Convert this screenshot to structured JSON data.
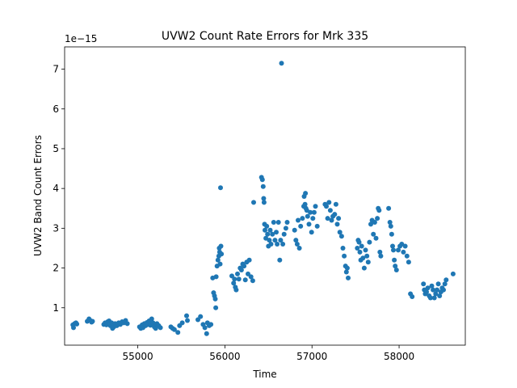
{
  "chart_data": {
    "type": "scatter",
    "title": "UVW2 Count Rate Errors for Mrk 335",
    "xlabel": "Time",
    "ylabel": "UVW2 Band Count Errors",
    "offset_text": "1e−15",
    "xlim": [
      54160,
      58760
    ],
    "ylim": [
      0.06,
      7.56
    ],
    "xticks": [
      55000,
      56000,
      57000,
      58000
    ],
    "xtick_labels": [
      "55000",
      "56000",
      "57000",
      "58000"
    ],
    "yticks": [
      1,
      2,
      3,
      4,
      5,
      6,
      7
    ],
    "ytick_labels": [
      "1",
      "2",
      "3",
      "4",
      "5",
      "6",
      "7"
    ],
    "grid": false,
    "marker_color": "#1f77b4",
    "series": [
      {
        "points": [
          [
            54255,
            0.57
          ],
          [
            54262,
            0.5
          ],
          [
            54275,
            0.6
          ],
          [
            54290,
            0.62
          ],
          [
            54300,
            0.59
          ],
          [
            54420,
            0.66
          ],
          [
            54440,
            0.72
          ],
          [
            54455,
            0.68
          ],
          [
            54470,
            0.64
          ],
          [
            54480,
            0.66
          ],
          [
            54610,
            0.58
          ],
          [
            54625,
            0.62
          ],
          [
            54640,
            0.57
          ],
          [
            54655,
            0.65
          ],
          [
            54670,
            0.67
          ],
          [
            54685,
            0.55
          ],
          [
            54700,
            0.62
          ],
          [
            54710,
            0.48
          ],
          [
            54725,
            0.52
          ],
          [
            54740,
            0.6
          ],
          [
            54760,
            0.55
          ],
          [
            54780,
            0.62
          ],
          [
            54800,
            0.58
          ],
          [
            54820,
            0.65
          ],
          [
            54840,
            0.62
          ],
          [
            54860,
            0.68
          ],
          [
            54880,
            0.6
          ],
          [
            55020,
            0.52
          ],
          [
            55035,
            0.48
          ],
          [
            55050,
            0.57
          ],
          [
            55060,
            0.5
          ],
          [
            55075,
            0.6
          ],
          [
            55090,
            0.55
          ],
          [
            55105,
            0.63
          ],
          [
            55115,
            0.58
          ],
          [
            55130,
            0.67
          ],
          [
            55145,
            0.56
          ],
          [
            55160,
            0.72
          ],
          [
            55175,
            0.62
          ],
          [
            55190,
            0.52
          ],
          [
            55205,
            0.48
          ],
          [
            55220,
            0.6
          ],
          [
            55240,
            0.55
          ],
          [
            55260,
            0.5
          ],
          [
            55380,
            0.52
          ],
          [
            55400,
            0.48
          ],
          [
            55420,
            0.45
          ],
          [
            55460,
            0.38
          ],
          [
            55480,
            0.55
          ],
          [
            55510,
            0.62
          ],
          [
            55560,
            0.8
          ],
          [
            55570,
            0.68
          ],
          [
            55690,
            0.7
          ],
          [
            55720,
            0.78
          ],
          [
            55750,
            0.58
          ],
          [
            55770,
            0.5
          ],
          [
            55790,
            0.35
          ],
          [
            55800,
            0.62
          ],
          [
            55820,
            0.55
          ],
          [
            55840,
            0.58
          ],
          [
            55860,
            1.75
          ],
          [
            55870,
            1.38
          ],
          [
            55880,
            1.3
          ],
          [
            55890,
            1.22
          ],
          [
            55895,
            1.0
          ],
          [
            55900,
            1.78
          ],
          [
            55910,
            2.05
          ],
          [
            55920,
            2.2
          ],
          [
            55930,
            2.3
          ],
          [
            55935,
            2.5
          ],
          [
            55940,
            2.4
          ],
          [
            55945,
            2.1
          ],
          [
            55950,
            4.02
          ],
          [
            55955,
            2.55
          ],
          [
            55960,
            2.35
          ],
          [
            56080,
            1.8
          ],
          [
            56100,
            1.62
          ],
          [
            56110,
            1.72
          ],
          [
            56120,
            1.52
          ],
          [
            56130,
            1.45
          ],
          [
            56145,
            1.85
          ],
          [
            56160,
            1.72
          ],
          [
            56175,
            2.0
          ],
          [
            56190,
            1.95
          ],
          [
            56205,
            2.1
          ],
          [
            56220,
            2.05
          ],
          [
            56235,
            1.7
          ],
          [
            56250,
            2.15
          ],
          [
            56265,
            1.85
          ],
          [
            56280,
            2.2
          ],
          [
            56300,
            1.78
          ],
          [
            56320,
            1.68
          ],
          [
            56330,
            3.65
          ],
          [
            56420,
            4.28
          ],
          [
            56430,
            4.22
          ],
          [
            56440,
            4.05
          ],
          [
            56445,
            3.75
          ],
          [
            56450,
            3.65
          ],
          [
            56455,
            3.1
          ],
          [
            56460,
            2.95
          ],
          [
            56470,
            2.75
          ],
          [
            56480,
            3.05
          ],
          [
            56490,
            2.85
          ],
          [
            56500,
            2.55
          ],
          [
            56510,
            2.7
          ],
          [
            56520,
            2.95
          ],
          [
            56530,
            2.6
          ],
          [
            56545,
            2.85
          ],
          [
            56560,
            3.15
          ],
          [
            56575,
            2.7
          ],
          [
            56590,
            2.9
          ],
          [
            56600,
            2.6
          ],
          [
            56615,
            3.15
          ],
          [
            56630,
            2.2
          ],
          [
            56640,
            2.7
          ],
          [
            56650,
            7.15
          ],
          [
            56665,
            2.6
          ],
          [
            56680,
            2.85
          ],
          [
            56700,
            3.0
          ],
          [
            56715,
            3.15
          ],
          [
            56800,
            2.95
          ],
          [
            56815,
            2.7
          ],
          [
            56830,
            2.6
          ],
          [
            56840,
            3.2
          ],
          [
            56855,
            2.5
          ],
          [
            56870,
            3.05
          ],
          [
            56890,
            3.25
          ],
          [
            56905,
            3.55
          ],
          [
            56910,
            3.8
          ],
          [
            56920,
            3.6
          ],
          [
            56925,
            3.88
          ],
          [
            56930,
            3.5
          ],
          [
            56940,
            3.45
          ],
          [
            56950,
            3.3
          ],
          [
            56965,
            3.1
          ],
          [
            56980,
            3.4
          ],
          [
            56995,
            2.9
          ],
          [
            57010,
            3.25
          ],
          [
            57025,
            3.4
          ],
          [
            57040,
            3.55
          ],
          [
            57060,
            3.05
          ],
          [
            57150,
            3.6
          ],
          [
            57165,
            3.55
          ],
          [
            57180,
            3.25
          ],
          [
            57195,
            3.65
          ],
          [
            57210,
            3.45
          ],
          [
            57225,
            3.2
          ],
          [
            57240,
            3.3
          ],
          [
            57260,
            3.35
          ],
          [
            57275,
            3.6
          ],
          [
            57290,
            3.1
          ],
          [
            57305,
            3.25
          ],
          [
            57320,
            2.9
          ],
          [
            57340,
            2.8
          ],
          [
            57355,
            2.5
          ],
          [
            57370,
            2.3
          ],
          [
            57385,
            2.05
          ],
          [
            57395,
            1.9
          ],
          [
            57405,
            2.0
          ],
          [
            57415,
            1.75
          ],
          [
            57520,
            2.5
          ],
          [
            57530,
            2.7
          ],
          [
            57540,
            2.65
          ],
          [
            57550,
            2.4
          ],
          [
            57560,
            2.2
          ],
          [
            57570,
            2.55
          ],
          [
            57585,
            2.25
          ],
          [
            57600,
            2.0
          ],
          [
            57615,
            2.45
          ],
          [
            57630,
            2.3
          ],
          [
            57645,
            2.15
          ],
          [
            57660,
            2.65
          ],
          [
            57675,
            3.1
          ],
          [
            57690,
            3.2
          ],
          [
            57705,
            2.85
          ],
          [
            57720,
            3.15
          ],
          [
            57735,
            2.75
          ],
          [
            57750,
            3.25
          ],
          [
            57760,
            3.5
          ],
          [
            57770,
            3.45
          ],
          [
            57780,
            2.4
          ],
          [
            57790,
            2.3
          ],
          [
            57880,
            3.5
          ],
          [
            57895,
            3.15
          ],
          [
            57905,
            3.05
          ],
          [
            57915,
            2.85
          ],
          [
            57925,
            2.55
          ],
          [
            57935,
            2.45
          ],
          [
            57945,
            2.2
          ],
          [
            57955,
            2.05
          ],
          [
            57970,
            1.95
          ],
          [
            57990,
            2.45
          ],
          [
            58010,
            2.55
          ],
          [
            58030,
            2.6
          ],
          [
            58050,
            2.4
          ],
          [
            58070,
            2.55
          ],
          [
            58090,
            2.3
          ],
          [
            58110,
            2.15
          ],
          [
            58130,
            1.35
          ],
          [
            58150,
            1.28
          ],
          [
            58280,
            1.6
          ],
          [
            58290,
            1.45
          ],
          [
            58300,
            1.35
          ],
          [
            58315,
            1.4
          ],
          [
            58330,
            1.5
          ],
          [
            58345,
            1.3
          ],
          [
            58360,
            1.25
          ],
          [
            58375,
            1.55
          ],
          [
            58390,
            1.45
          ],
          [
            58405,
            1.25
          ],
          [
            58420,
            1.35
          ],
          [
            58435,
            1.45
          ],
          [
            58450,
            1.6
          ],
          [
            58465,
            1.3
          ],
          [
            58480,
            1.4
          ],
          [
            58495,
            1.5
          ],
          [
            58510,
            1.45
          ],
          [
            58525,
            1.6
          ],
          [
            58540,
            1.7
          ],
          [
            58620,
            1.85
          ]
        ]
      }
    ]
  }
}
